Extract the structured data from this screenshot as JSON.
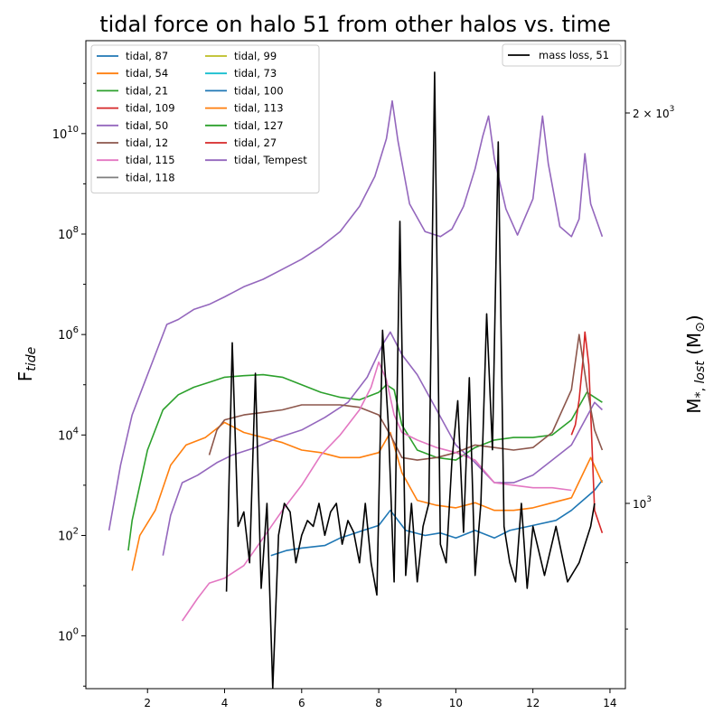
{
  "chart_data": {
    "type": "line",
    "title": "tidal force on halo 51 from other halos vs. time",
    "ylabel_left": "F_tide",
    "ylabel_right": "M_*,lost (M_⊙)",
    "xlim": [
      0.4,
      14.4
    ],
    "ylim_left_log10": [
      -1.05,
      11.85
    ],
    "y_scale_left": "log",
    "y_scale_right": "log",
    "x_ticks": [
      "2",
      "4",
      "6",
      "8",
      "10",
      "12",
      "14"
    ],
    "y_ticks_left": [
      {
        "base": "10",
        "exp": "0"
      },
      {
        "base": "10",
        "exp": "2"
      },
      {
        "base": "10",
        "exp": "4"
      },
      {
        "base": "10",
        "exp": "6"
      },
      {
        "base": "10",
        "exp": "8"
      },
      {
        "base": "10",
        "exp": "10"
      }
    ],
    "y_ticks_right": [
      {
        "base": "2 × 10",
        "exp": "3"
      },
      {
        "base": "10",
        "exp": "3"
      }
    ],
    "legend_left_position": "upper-left",
    "legend_right_position": "upper-right",
    "grid": false,
    "series": [
      {
        "name": "tidal, 87",
        "color": "#1f77b4",
        "x": [
          5.2,
          5.6,
          6.0,
          6.6,
          7.0,
          7.6,
          8.0,
          8.3,
          8.7,
          9.2,
          9.6,
          10.0,
          10.5,
          11.0,
          11.4,
          12.0,
          12.6,
          13.0,
          13.6,
          13.8
        ],
        "y": [
          1.6,
          1.7,
          1.75,
          1.8,
          1.95,
          2.1,
          2.2,
          2.5,
          2.1,
          2.0,
          2.05,
          1.95,
          2.1,
          1.95,
          2.1,
          2.2,
          2.3,
          2.5,
          2.9,
          3.1
        ]
      },
      {
        "name": "tidal, 54",
        "color": "#ff7f0e",
        "x": [
          1.6,
          1.8,
          2.2,
          2.6,
          3.0,
          3.5,
          4.0,
          4.5,
          5.0,
          5.5,
          6.0,
          6.5,
          7.0,
          7.5,
          8.0,
          8.3,
          8.6,
          9.0,
          9.5,
          10.0,
          10.5,
          11.0,
          11.5,
          12.0,
          12.5,
          13.0,
          13.5,
          13.8
        ],
        "y": [
          1.3,
          2.0,
          2.5,
          3.4,
          3.8,
          3.95,
          4.25,
          4.05,
          3.95,
          3.85,
          3.7,
          3.65,
          3.55,
          3.55,
          3.65,
          4.05,
          3.25,
          2.7,
          2.6,
          2.55,
          2.65,
          2.5,
          2.5,
          2.55,
          2.65,
          2.75,
          3.55,
          3.05
        ]
      },
      {
        "name": "tidal, 21",
        "color": "#2ca02c",
        "x": [
          1.5,
          1.6,
          2.0,
          2.4,
          2.8,
          3.2,
          3.6,
          4.0,
          4.5,
          5.0,
          5.5,
          6.0,
          6.5,
          7.0,
          7.5,
          8.0,
          8.2,
          8.4,
          8.6,
          9.0,
          9.5,
          10.0,
          10.5,
          11.0,
          11.5,
          12.0,
          12.5,
          13.0,
          13.4,
          13.8
        ],
        "y": [
          1.7,
          2.3,
          3.7,
          4.5,
          4.8,
          4.95,
          5.05,
          5.15,
          5.18,
          5.2,
          5.15,
          5.0,
          4.85,
          4.75,
          4.7,
          4.85,
          5.0,
          4.9,
          4.2,
          3.7,
          3.55,
          3.5,
          3.75,
          3.9,
          3.95,
          3.95,
          4.0,
          4.3,
          4.85,
          4.65
        ]
      },
      {
        "name": "tidal, 109",
        "color": "#d62728",
        "x": [
          13.0,
          13.1,
          13.2,
          13.3,
          13.35,
          13.45,
          13.6,
          13.8
        ],
        "y": [
          4.0,
          4.2,
          4.7,
          5.5,
          6.05,
          5.4,
          2.5,
          2.05
        ]
      },
      {
        "name": "tidal, 50",
        "color": "#9467bd",
        "x": [
          2.4,
          2.6,
          2.9,
          3.3,
          3.8,
          4.2,
          4.8,
          5.4,
          6.0,
          6.6,
          7.2,
          7.7,
          8.1,
          8.3,
          8.6,
          9.0,
          9.5,
          10.0,
          10.5,
          11.0,
          11.5,
          12.0,
          12.5,
          13.0,
          13.6,
          13.8
        ],
        "y": [
          1.6,
          2.4,
          3.05,
          3.2,
          3.45,
          3.6,
          3.75,
          3.95,
          4.1,
          4.35,
          4.65,
          5.15,
          5.8,
          6.05,
          5.6,
          5.2,
          4.5,
          3.8,
          3.45,
          3.05,
          3.05,
          3.2,
          3.5,
          3.8,
          4.65,
          4.5
        ]
      },
      {
        "name": "tidal, 12",
        "color": "#8c564b",
        "x": [
          3.6,
          3.8,
          4.0,
          4.5,
          5.0,
          5.5,
          6.0,
          6.5,
          7.0,
          7.5,
          8.0,
          8.3,
          8.6,
          9.0,
          9.5,
          10.0,
          10.5,
          11.0,
          11.5,
          12.0,
          12.5,
          13.0,
          13.2,
          13.4,
          13.6,
          13.8
        ],
        "y": [
          3.6,
          4.1,
          4.3,
          4.4,
          4.45,
          4.5,
          4.6,
          4.6,
          4.6,
          4.55,
          4.4,
          4.0,
          3.55,
          3.5,
          3.55,
          3.65,
          3.8,
          3.75,
          3.7,
          3.75,
          4.05,
          4.9,
          6.0,
          4.95,
          4.1,
          3.7
        ]
      },
      {
        "name": "tidal, 115",
        "color": "#e377c2",
        "x": [
          2.9,
          3.3,
          3.6,
          4.0,
          4.5,
          5.0,
          5.5,
          6.0,
          6.5,
          7.0,
          7.5,
          7.8,
          8.0,
          8.2,
          8.4,
          8.6,
          9.0,
          9.5,
          10.0,
          10.5,
          11.0,
          11.5,
          12.0,
          12.5,
          13.0
        ],
        "y": [
          0.3,
          0.75,
          1.05,
          1.15,
          1.4,
          1.95,
          2.5,
          3.0,
          3.6,
          4.0,
          4.5,
          4.95,
          5.45,
          5.1,
          4.4,
          4.05,
          3.9,
          3.75,
          3.65,
          3.5,
          3.05,
          3.0,
          2.95,
          2.95,
          2.9
        ]
      },
      {
        "name": "tidal, Tempest",
        "color": "#9467bd",
        "x": [
          1.0,
          1.3,
          1.6,
          1.9,
          2.2,
          2.5,
          2.8,
          3.2,
          3.6,
          4.0,
          4.5,
          5.0,
          5.5,
          6.0,
          6.5,
          7.0,
          7.5,
          7.9,
          8.2,
          8.35,
          8.5,
          8.8,
          9.2,
          9.6,
          9.9,
          10.2,
          10.5,
          10.7,
          10.85,
          11.0,
          11.3,
          11.6,
          12.0,
          12.25,
          12.4,
          12.7,
          13.0,
          13.2,
          13.35,
          13.5,
          13.8
        ],
        "y": [
          2.1,
          3.4,
          4.4,
          5.0,
          5.6,
          6.2,
          6.3,
          6.5,
          6.6,
          6.75,
          6.95,
          7.1,
          7.3,
          7.5,
          7.75,
          8.05,
          8.55,
          9.15,
          9.9,
          10.65,
          9.85,
          8.6,
          8.05,
          7.95,
          8.1,
          8.55,
          9.3,
          9.95,
          10.35,
          9.5,
          8.5,
          7.98,
          8.7,
          10.35,
          9.4,
          8.15,
          7.95,
          8.3,
          9.6,
          8.6,
          7.95
        ]
      }
    ],
    "legend_entries": [
      {
        "label": "tidal, 87",
        "color": "#1f77b4"
      },
      {
        "label": "tidal, 54",
        "color": "#ff7f0e"
      },
      {
        "label": "tidal, 21",
        "color": "#2ca02c"
      },
      {
        "label": "tidal, 109",
        "color": "#d62728"
      },
      {
        "label": "tidal, 50",
        "color": "#9467bd"
      },
      {
        "label": "tidal, 12",
        "color": "#8c564b"
      },
      {
        "label": "tidal, 115",
        "color": "#e377c2"
      },
      {
        "label": "tidal, 118",
        "color": "#7f7f7f"
      },
      {
        "label": "tidal, 99",
        "color": "#bcbd22"
      },
      {
        "label": "tidal, 73",
        "color": "#17becf"
      },
      {
        "label": "tidal, 100",
        "color": "#1f77b4"
      },
      {
        "label": "tidal, 113",
        "color": "#ff7f0e"
      },
      {
        "label": "tidal, 127",
        "color": "#2ca02c"
      },
      {
        "label": "tidal, 27",
        "color": "#d62728"
      },
      {
        "label": "tidal, Tempest",
        "color": "#9467bd"
      }
    ],
    "mass_loss": {
      "name": "mass loss, 51",
      "color": "#000000",
      "x": [
        4.05,
        4.2,
        4.35,
        4.5,
        4.65,
        4.8,
        4.95,
        5.1,
        5.25,
        5.4,
        5.55,
        5.7,
        5.85,
        6.0,
        6.15,
        6.3,
        6.45,
        6.6,
        6.75,
        6.9,
        7.05,
        7.2,
        7.35,
        7.5,
        7.65,
        7.8,
        7.95,
        8.1,
        8.25,
        8.4,
        8.55,
        8.7,
        8.85,
        9.0,
        9.15,
        9.3,
        9.45,
        9.6,
        9.75,
        9.9,
        10.05,
        10.2,
        10.35,
        10.5,
        10.65,
        10.8,
        10.95,
        11.1,
        11.25,
        11.4,
        11.55,
        11.7,
        11.85,
        12.0,
        12.3,
        12.6,
        12.9,
        13.2,
        13.5,
        13.6
      ],
      "y": [
        855,
        1330,
        960,
        985,
        900,
        1260,
        860,
        1000,
        720,
        945,
        1000,
        985,
        900,
        945,
        970,
        960,
        1000,
        945,
        985,
        1000,
        930,
        970,
        950,
        900,
        1000,
        900,
        850,
        1360,
        1150,
        870,
        1650,
        880,
        1000,
        870,
        960,
        1000,
        2150,
        930,
        900,
        1080,
        1200,
        950,
        1250,
        880,
        1000,
        1400,
        1100,
        1900,
        960,
        900,
        870,
        1000,
        860,
        960,
        880,
        960,
        870,
        900,
        960,
        1000
      ]
    }
  }
}
